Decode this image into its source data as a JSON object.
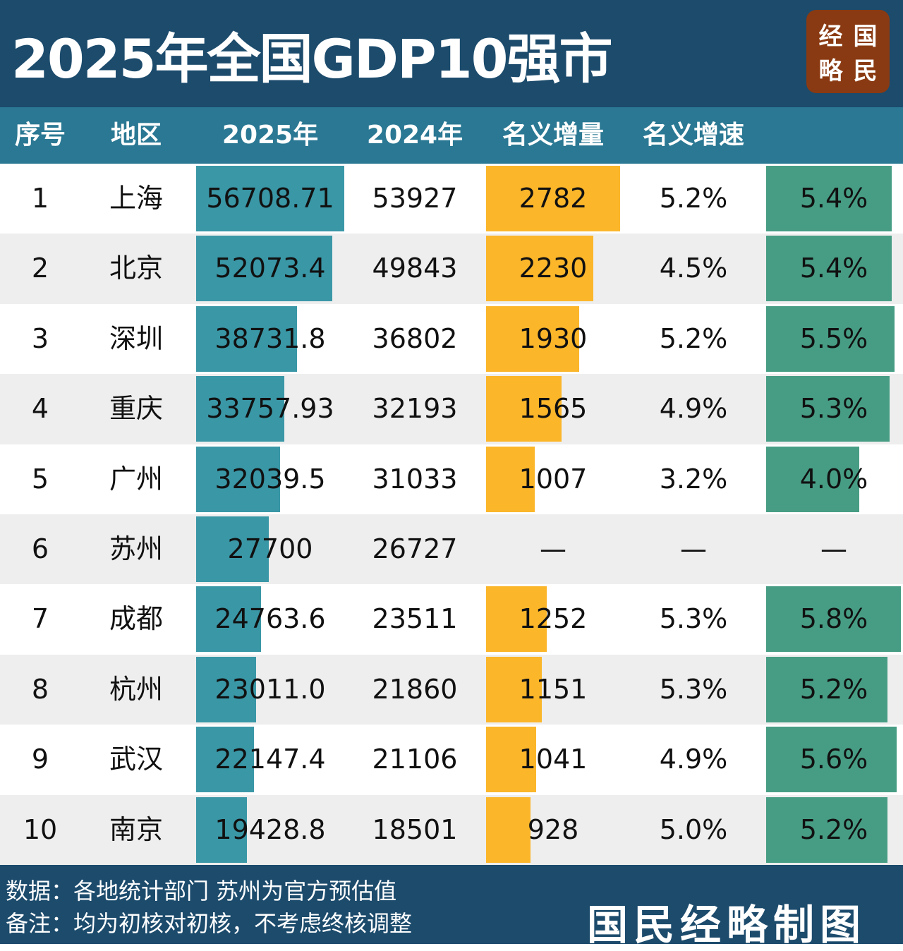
{
  "title": "2025年全国GDP10强市",
  "logo": [
    "经",
    "国",
    "略",
    "民"
  ],
  "headers": [
    "序号",
    "地区",
    "2025年",
    "2024年",
    "名义增量",
    "名义增速",
    ""
  ],
  "colors": {
    "gdp_bar": "#3a97a6",
    "increment_bar": "#fbb62a",
    "growth_bar": "#479d84",
    "header": "#2a7893",
    "band": "#1c4b6c"
  },
  "rows": [
    {
      "rank": "1",
      "city": "上海",
      "gdp2025": "56708.71",
      "gdp2024": "53927",
      "inc": "2782",
      "rate": "5.2%",
      "real": "5.4%"
    },
    {
      "rank": "2",
      "city": "北京",
      "gdp2025": "52073.4",
      "gdp2024": "49843",
      "inc": "2230",
      "rate": "4.5%",
      "real": "5.4%"
    },
    {
      "rank": "3",
      "city": "深圳",
      "gdp2025": "38731.8",
      "gdp2024": "36802",
      "inc": "1930",
      "rate": "5.2%",
      "real": "5.5%"
    },
    {
      "rank": "4",
      "city": "重庆",
      "gdp2025": "33757.93",
      "gdp2024": "32193",
      "inc": "1565",
      "rate": "4.9%",
      "real": "5.3%"
    },
    {
      "rank": "5",
      "city": "广州",
      "gdp2025": "32039.5",
      "gdp2024": "31033",
      "inc": "1007",
      "rate": "3.2%",
      "real": "4.0%"
    },
    {
      "rank": "6",
      "city": "苏州",
      "gdp2025": "27700",
      "gdp2024": "26727",
      "inc": "—",
      "rate": "—",
      "real": "—"
    },
    {
      "rank": "7",
      "city": "成都",
      "gdp2025": "24763.6",
      "gdp2024": "23511",
      "inc": "1252",
      "rate": "5.3%",
      "real": "5.8%"
    },
    {
      "rank": "8",
      "city": "杭州",
      "gdp2025": "23011.0",
      "gdp2024": "21860",
      "inc": "1151",
      "rate": "5.3%",
      "real": "5.2%"
    },
    {
      "rank": "9",
      "city": "武汉",
      "gdp2025": "22147.4",
      "gdp2024": "21106",
      "inc": "1041",
      "rate": "4.9%",
      "real": "5.6%"
    },
    {
      "rank": "10",
      "city": "南京",
      "gdp2025": "19428.8",
      "gdp2024": "18501",
      "inc": "928",
      "rate": "5.0%",
      "real": "5.2%"
    }
  ],
  "footer": {
    "source": "数据：各地统计部门  苏州为官方预估值",
    "note": "备注：均为初核对初核，不考虑终核调整",
    "signature": "国民经略制图"
  }
}
